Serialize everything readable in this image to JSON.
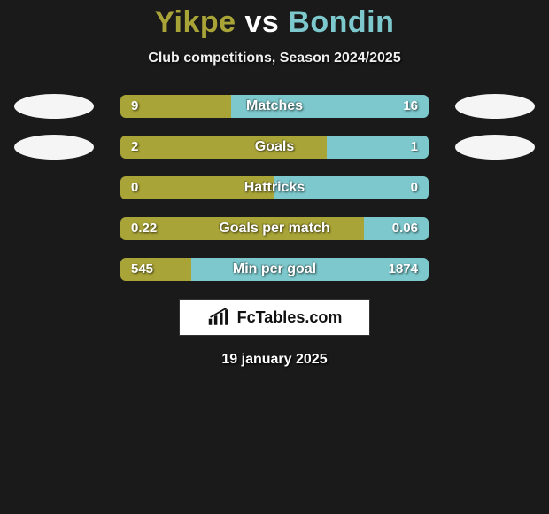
{
  "title": {
    "player1": "Yikpe",
    "vs": "vs",
    "player2": "Bondin",
    "player1_color": "#a9a437",
    "vs_color": "#ffffff",
    "player2_color": "#7cc8cc"
  },
  "subtitle": "Club competitions, Season 2024/2025",
  "colors": {
    "left_bar": "#a9a437",
    "right_bar": "#7cc8cc",
    "background": "#1a1a1a",
    "avatar": "#f5f5f5",
    "track_radius": 6
  },
  "rows": [
    {
      "label": "Matches",
      "left_value": "9",
      "right_value": "16",
      "left_pct": 36,
      "right_pct": 64,
      "show_avatars": true
    },
    {
      "label": "Goals",
      "left_value": "2",
      "right_value": "1",
      "left_pct": 67,
      "right_pct": 33,
      "show_avatars": true
    },
    {
      "label": "Hattricks",
      "left_value": "0",
      "right_value": "0",
      "left_pct": 50,
      "right_pct": 50,
      "show_avatars": false
    },
    {
      "label": "Goals per match",
      "left_value": "0.22",
      "right_value": "0.06",
      "left_pct": 79,
      "right_pct": 21,
      "show_avatars": false
    },
    {
      "label": "Min per goal",
      "left_value": "545",
      "right_value": "1874",
      "left_pct": 23,
      "right_pct": 77,
      "show_avatars": false
    }
  ],
  "logo_text": "FcTables.com",
  "date": "19 january 2025"
}
